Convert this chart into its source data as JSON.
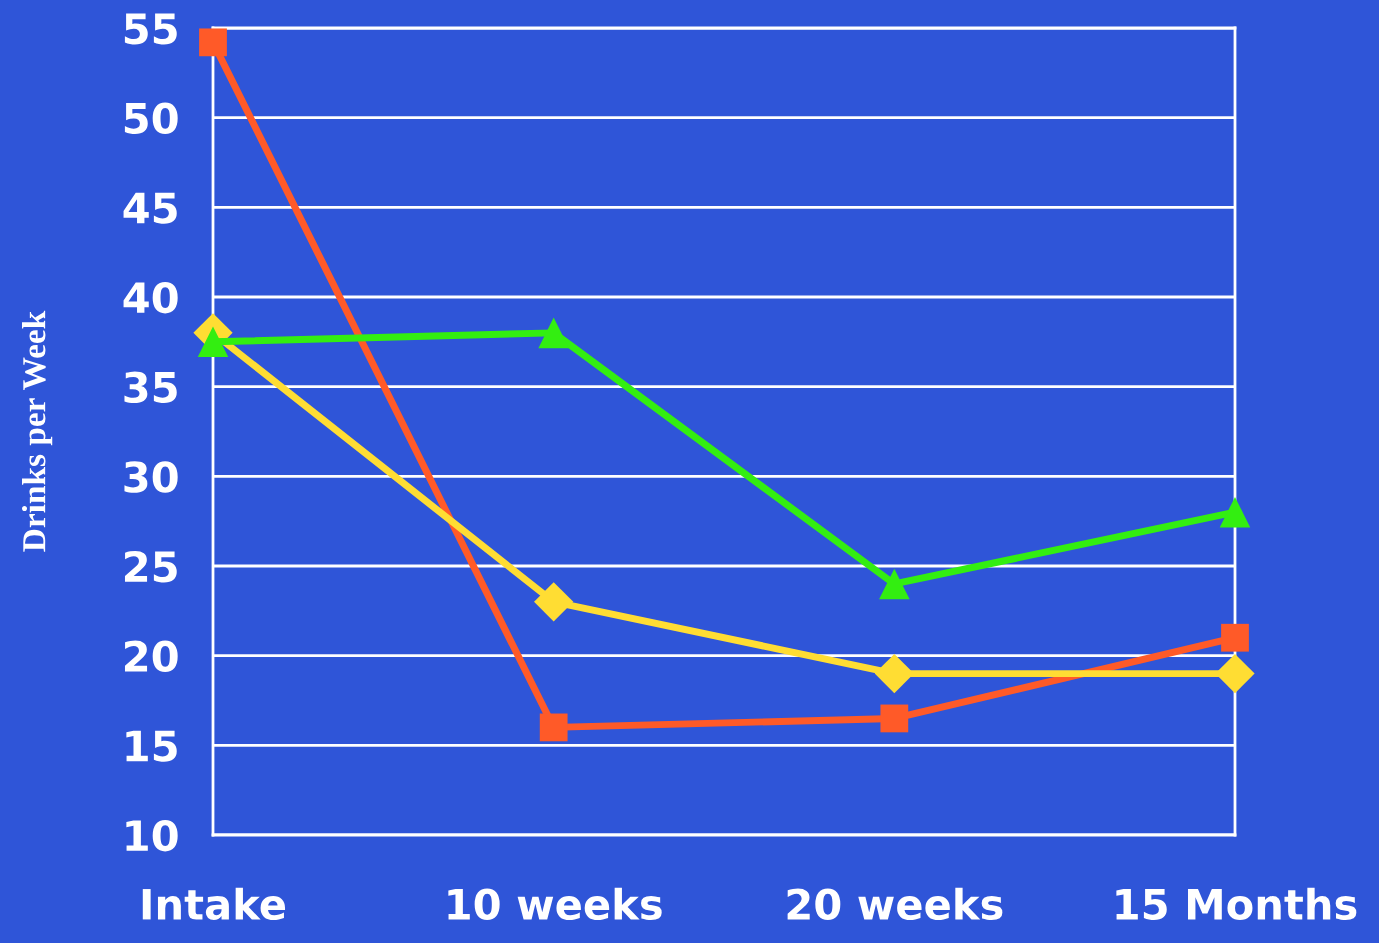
{
  "chart_data": {
    "type": "line",
    "ylabel": "Drinks per Week",
    "categories": [
      "Intake",
      "10 weeks",
      "20 weeks",
      "15 Months"
    ],
    "series": [
      {
        "color": "#ff5a28",
        "marker": "square",
        "values": [
          54.2,
          16,
          16.5,
          21
        ]
      },
      {
        "color": "#ffdd33",
        "marker": "diamond",
        "values": [
          38,
          23,
          19,
          19
        ]
      },
      {
        "color": "#33ee11",
        "marker": "triangle",
        "values": [
          37.5,
          38,
          24,
          28
        ]
      }
    ],
    "ylim": [
      10,
      55
    ],
    "yticks": [
      10,
      15,
      20,
      25,
      30,
      35,
      40,
      45,
      50,
      55
    ],
    "grid": "y",
    "legend": false
  }
}
